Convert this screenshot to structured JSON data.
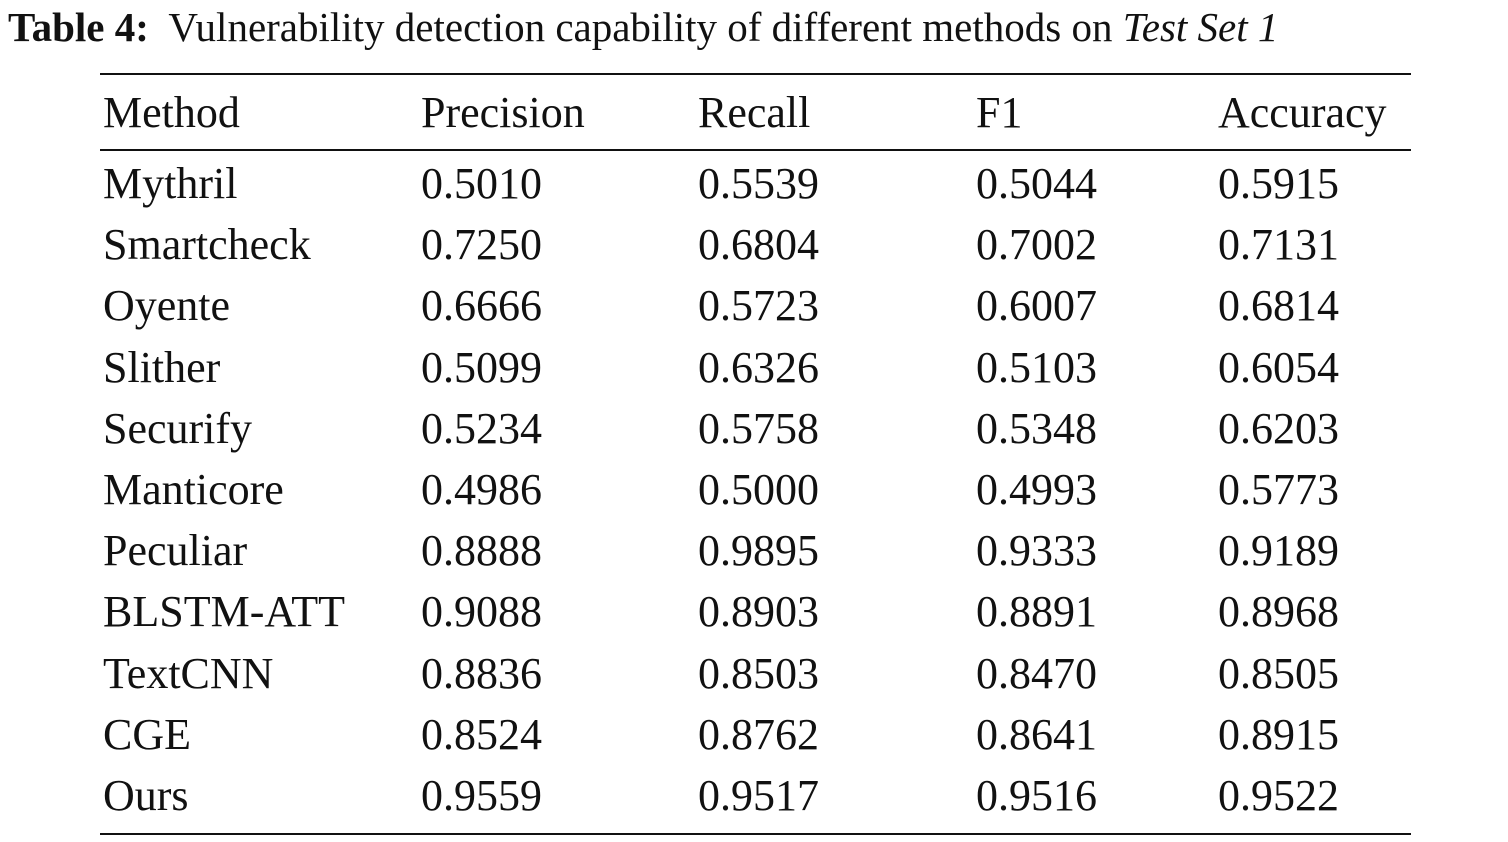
{
  "caption": {
    "label": "Table 4:",
    "text": "Vulnerability detection capability of different methods on",
    "dataset": "Test Set 1"
  },
  "table": {
    "headers": [
      "Method",
      "Precision",
      "Recall",
      "F1",
      "Accuracy"
    ],
    "rows": [
      [
        "Mythril",
        "0.5010",
        "0.5539",
        "0.5044",
        "0.5915"
      ],
      [
        "Smartcheck",
        "0.7250",
        "0.6804",
        "0.7002",
        "0.7131"
      ],
      [
        "Oyente",
        "0.6666",
        "0.5723",
        "0.6007",
        "0.6814"
      ],
      [
        "Slither",
        "0.5099",
        "0.6326",
        "0.5103",
        "0.6054"
      ],
      [
        "Securify",
        "0.5234",
        "0.5758",
        "0.5348",
        "0.6203"
      ],
      [
        "Manticore",
        "0.4986",
        "0.5000",
        "0.4993",
        "0.5773"
      ],
      [
        "Peculiar",
        "0.8888",
        "0.9895",
        "0.9333",
        "0.9189"
      ],
      [
        "BLSTM-ATT",
        "0.9088",
        "0.8903",
        "0.8891",
        "0.8968"
      ],
      [
        "TextCNN",
        "0.8836",
        "0.8503",
        "0.8470",
        "0.8505"
      ],
      [
        "CGE",
        "0.8524",
        "0.8762",
        "0.8641",
        "0.8915"
      ],
      [
        "Ours",
        "0.9559",
        "0.9517",
        "0.9516",
        "0.9522"
      ]
    ]
  }
}
